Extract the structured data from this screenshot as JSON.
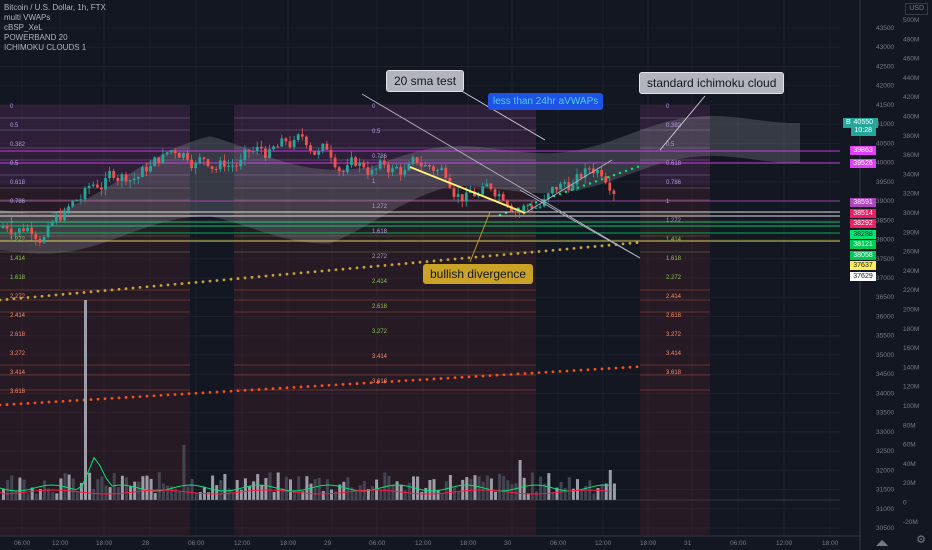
{
  "legend": {
    "title": "Bitcoin / U.S. Dollar, 1h, FTX",
    "indicators": [
      "multi VWAPs",
      "cBSP_XeL",
      "POWERBAND 20",
      "ICHIMOKU CLOUDS 1"
    ]
  },
  "callouts": {
    "sma": "20 sma test",
    "avwap": "less than 24hr aVWAPs",
    "ichimoku": "standard ichimoku cloud",
    "divergence": "bullish divergence"
  },
  "axis": {
    "currency": "USD",
    "price_ticks": [
      "43500",
      "43000",
      "42500",
      "42000",
      "41500",
      "41000",
      "40500",
      "40000",
      "39500",
      "39000",
      "38500",
      "38000",
      "37500",
      "37000",
      "36500",
      "36000",
      "35500",
      "35000",
      "34500",
      "34000",
      "33500",
      "33000",
      "32500",
      "32000",
      "31500",
      "31000",
      "30500"
    ],
    "volume_ticks": [
      "500M",
      "480M",
      "460M",
      "440M",
      "420M",
      "400M",
      "380M",
      "360M",
      "340M",
      "320M",
      "300M",
      "280M",
      "260M",
      "240M",
      "220M",
      "200M",
      "180M",
      "160M",
      "140M",
      "120M",
      "100M",
      "80M",
      "60M",
      "40M",
      "20M",
      "0",
      "-20M"
    ],
    "time_ticks": [
      "06:00",
      "12:00",
      "18:00",
      "28",
      "06:00",
      "12:00",
      "18:00",
      "29",
      "06:00",
      "12:00",
      "18:00",
      "30",
      "06:00",
      "12:00",
      "18:00",
      "31",
      "06:00",
      "12:00",
      "18:00"
    ]
  },
  "symbol": {
    "ticker": "BTCUSD",
    "price": "40550",
    "countdown": "10:28"
  },
  "levels": [
    {
      "value": "39863",
      "color": "#e040fb"
    },
    {
      "value": "39526",
      "color": "#e040fb"
    },
    {
      "value": "38591",
      "color": "#ab47bc"
    },
    {
      "value": "38514",
      "color": "#e91e63"
    },
    {
      "value": "38292",
      "color": "#e91e63"
    },
    {
      "value": "38288",
      "color": "#00e676"
    },
    {
      "value": "38121",
      "color": "#00c853"
    },
    {
      "value": "38058",
      "color": "#00c853"
    },
    {
      "value": "37637",
      "color": "#ffee58"
    },
    {
      "value": "37629",
      "color": "#ffffff"
    }
  ],
  "fib_labels": {
    "zones": [
      [
        "0",
        "0.5",
        "0.382",
        "0.5",
        "0.618",
        "0.786",
        "1",
        "1.272",
        "1.414",
        "1.618",
        "2.272",
        "2.414",
        "2.618",
        "3.272",
        "3.414",
        "3.618"
      ],
      [
        "0",
        "0.5",
        "0.786",
        "1",
        "1.272",
        "1.618",
        "2.272",
        "2.414",
        "2.618",
        "3.272",
        "3.414",
        "3.618"
      ],
      [
        "0",
        "0.382",
        "0.5",
        "0.618",
        "0.786",
        "1",
        "1.272",
        "1.414",
        "1.618",
        "2.272",
        "2.414",
        "2.618",
        "3.272",
        "3.414",
        "3.618"
      ]
    ]
  },
  "colors": {
    "bg": "#131722",
    "grid": "#1e222d",
    "up": "#26a69a",
    "down": "#ef5350",
    "cloud": "#9598a1",
    "vwap_orange": "#ff9800",
    "vwap_red": "#f4511e",
    "fib_purple": "#7e57c2"
  }
}
